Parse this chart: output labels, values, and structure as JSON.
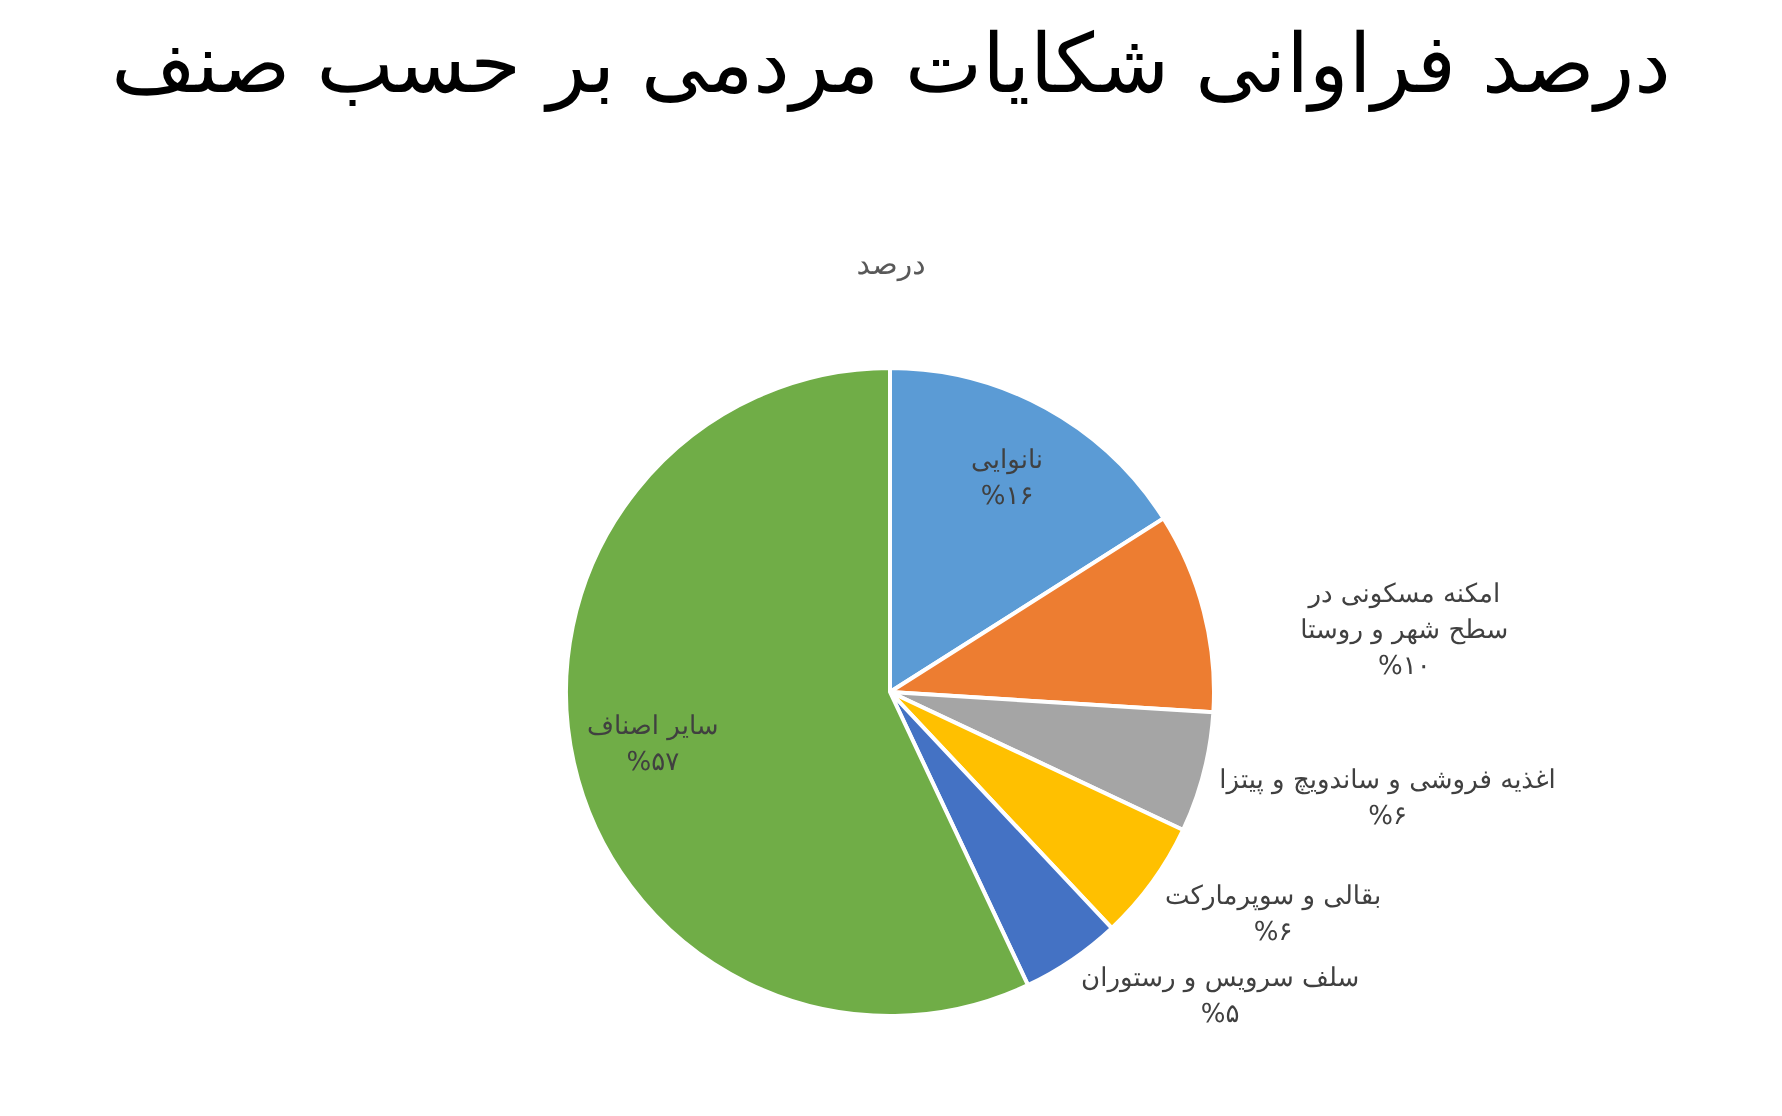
{
  "chart_data": {
    "type": "pie",
    "title": "درصد فراوانی شکایات مردمی بر حسب صنف",
    "subtitle": "درصد",
    "categories": [
      "نانوایی",
      "امکنه مسکونی در سطح شهر و روستا",
      "اغذیه فروشی و ساندویچ و پیتزا",
      "بقالی و سوپرمارکت",
      "سلف سرویس و رستوران",
      "سایر اصناف"
    ],
    "values": [
      16,
      10,
      6,
      6,
      5,
      57
    ],
    "colors": [
      "#5b9bd5",
      "#ed7d31",
      "#a5a5a5",
      "#ffc000",
      "#4472c4",
      "#70ad47"
    ],
    "value_labels": [
      "%۱۶",
      "%۱۰",
      "%۶",
      "%۶",
      "%۵",
      "%۵۷"
    ]
  }
}
